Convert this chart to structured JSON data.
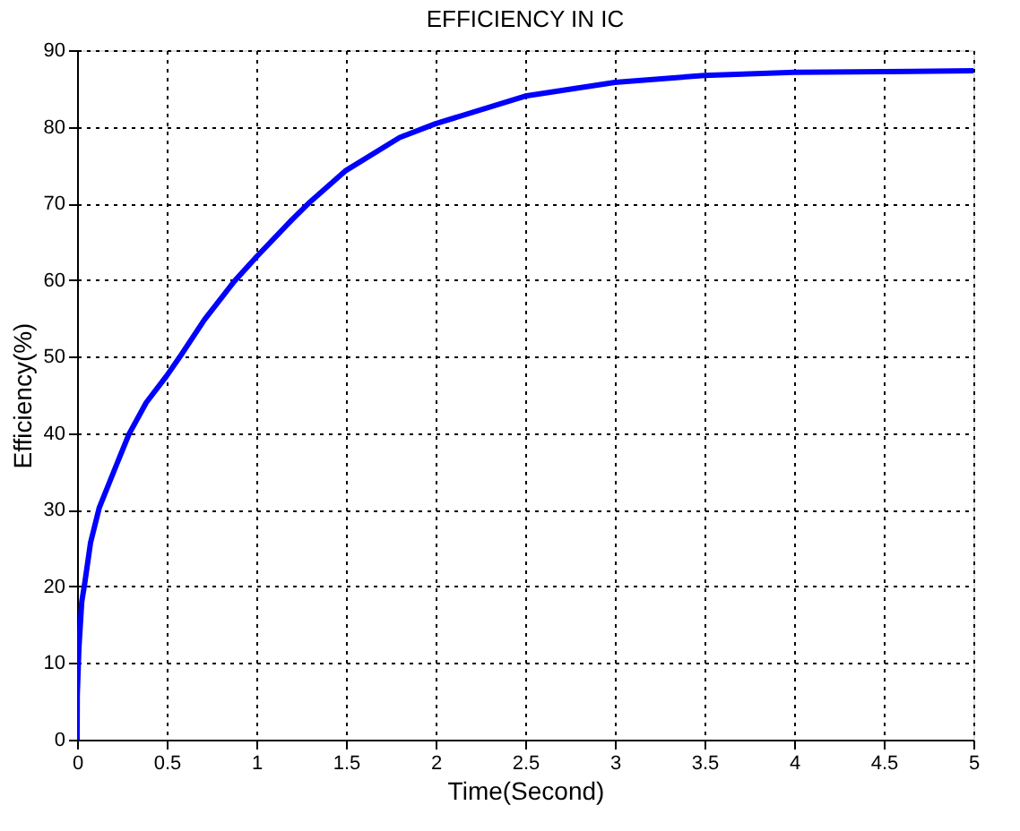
{
  "chart_data": {
    "type": "line",
    "title": "EFFICIENCY IN IC",
    "xlabel": "Time(Second)",
    "ylabel": "Efficiency(%)",
    "series": [
      {
        "color": "#0000ff",
        "x": [
          0,
          0.001,
          0.01,
          0.026,
          0.042,
          0.075,
          0.124,
          0.222,
          0.29,
          0.386,
          0.5,
          0.58,
          0.71,
          0.876,
          1.0,
          1.2,
          1.3,
          1.5,
          1.8,
          2.0,
          2.5,
          3.0,
          3.5,
          4.0,
          4.5,
          5.0
        ],
        "values": [
          0,
          5.8,
          11.9,
          18,
          20.3,
          25.7,
          30.3,
          36,
          39.9,
          44,
          47.5,
          50.2,
          54.8,
          59.8,
          63,
          67.9,
          70.2,
          74.3,
          78.6,
          80.4,
          84.0,
          85.8,
          86.7,
          87.1,
          87.2,
          87.3
        ]
      }
    ],
    "xlim": [
      0,
      5
    ],
    "xticks": [
      0,
      0.5,
      1,
      1.5,
      2,
      2.5,
      3,
      3.5,
      4,
      4.5,
      5
    ],
    "ylim": [
      0,
      90
    ],
    "yticks": [
      0,
      10,
      20,
      30,
      40,
      50,
      60,
      70,
      80,
      90
    ],
    "grid": true,
    "marker": "none",
    "line_style": "solid"
  }
}
